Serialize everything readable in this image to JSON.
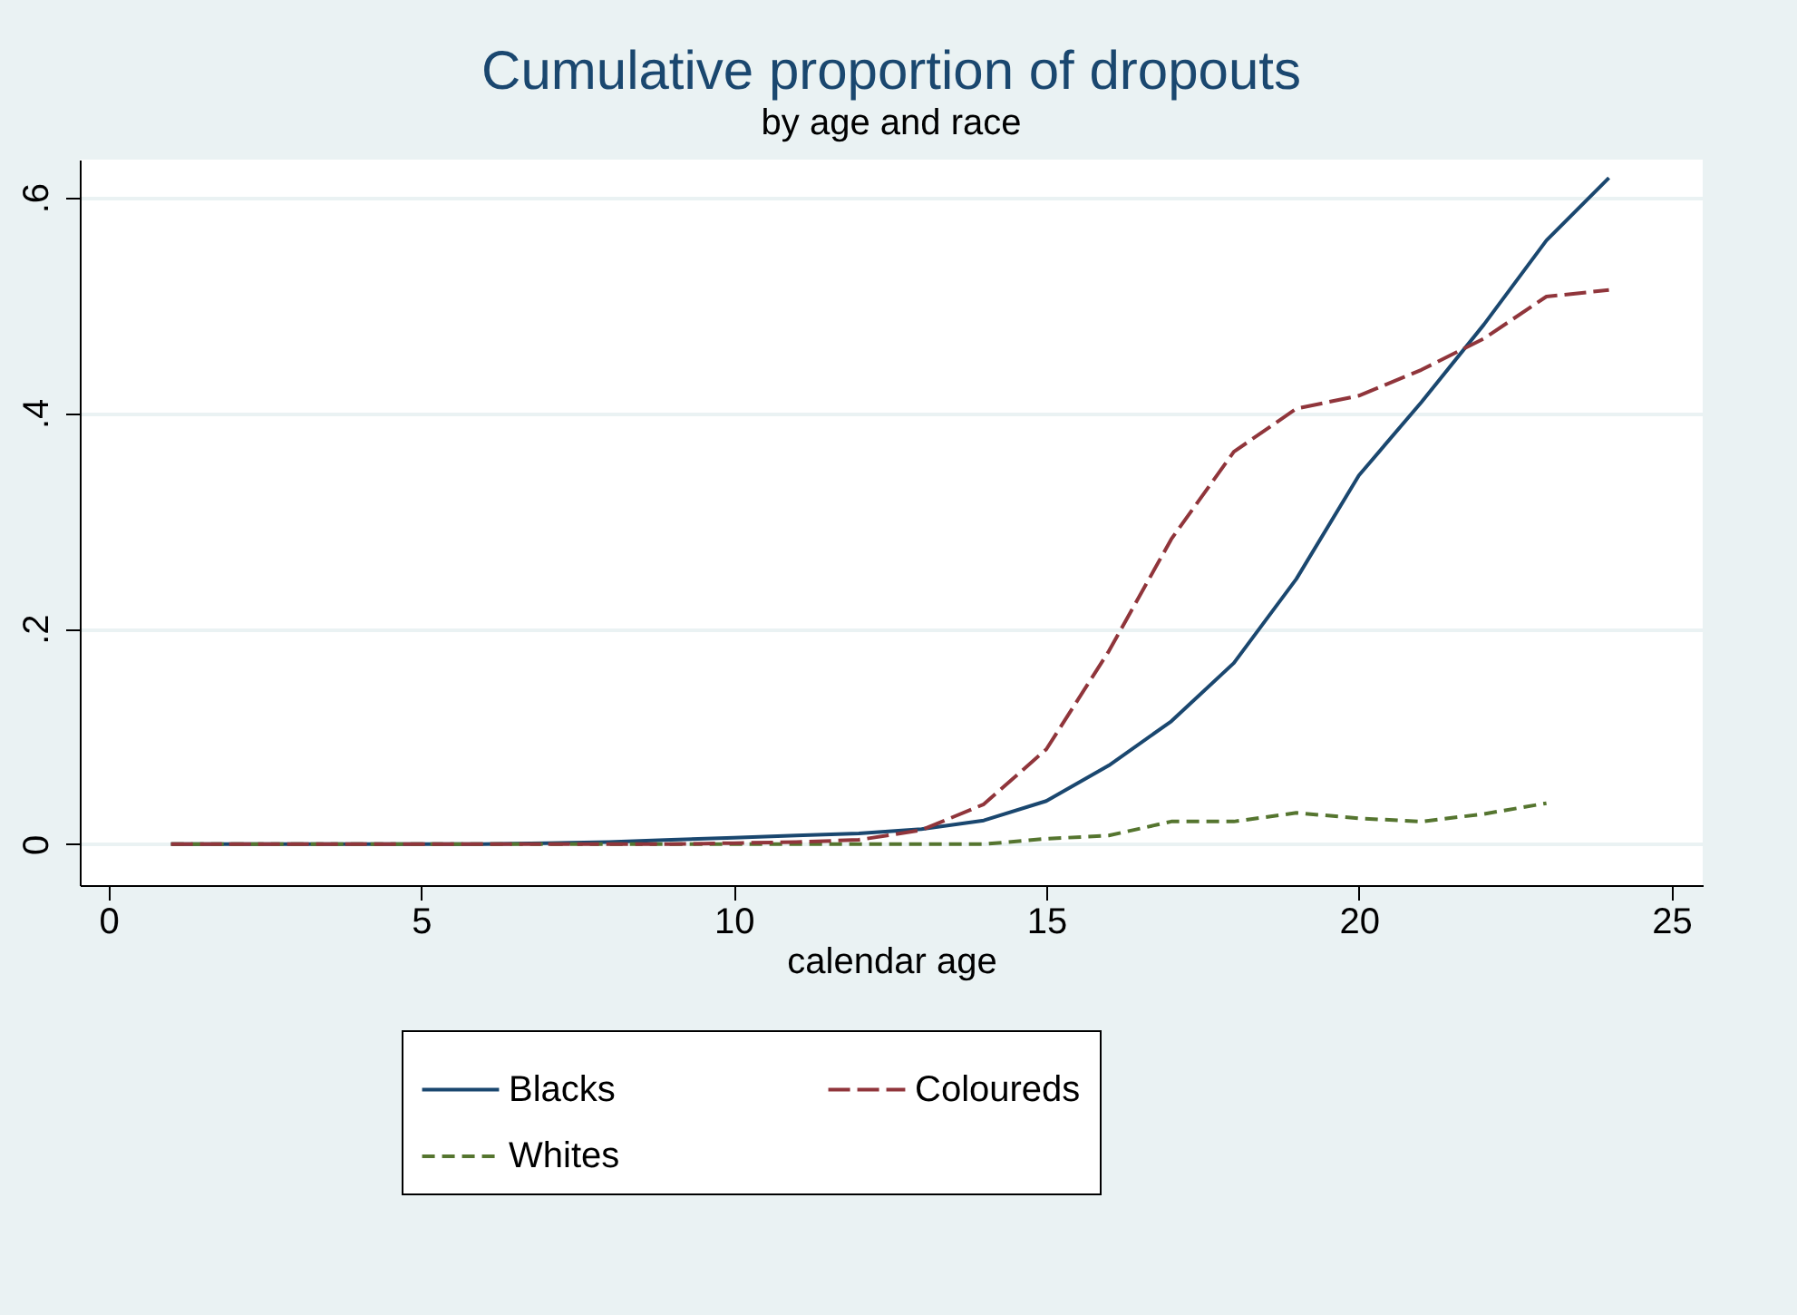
{
  "chart_data": {
    "type": "line",
    "title": "Cumulative proportion of dropouts",
    "subtitle": "by age and race",
    "xlabel": "calendar age",
    "x": [
      1,
      2,
      3,
      4,
      5,
      6,
      7,
      8,
      9,
      10,
      11,
      12,
      13,
      14,
      15,
      16,
      17,
      18,
      19,
      20,
      21,
      22,
      23,
      24
    ],
    "series": [
      {
        "name": "Blacks",
        "color": "#1a476f",
        "line_style": "solid",
        "values": [
          0,
          0,
          0,
          0,
          0,
          0,
          0.001,
          0.002,
          0.004,
          0.006,
          0.008,
          0.01,
          0.014,
          0.022,
          0.04,
          0.073,
          0.114,
          0.168,
          0.246,
          0.342,
          0.41,
          0.482,
          0.56,
          0.618
        ]
      },
      {
        "name": "Coloureds",
        "color": "#90353b",
        "line_style": "longdash",
        "values": [
          0,
          0,
          0,
          0,
          0,
          0,
          0,
          0,
          0,
          0.001,
          0.002,
          0.004,
          0.013,
          0.037,
          0.088,
          0.179,
          0.283,
          0.364,
          0.404,
          0.416,
          0.44,
          0.469,
          0.508,
          0.514
        ]
      },
      {
        "name": "Whites",
        "color": "#55752f",
        "line_style": "dashed",
        "values": [
          0,
          0,
          0,
          0,
          0,
          0,
          0,
          0,
          0,
          0,
          0,
          0,
          0,
          0,
          0.005,
          0.008,
          0.021,
          0.021,
          0.029,
          0.024,
          0.021,
          0.028,
          0.038,
          null
        ]
      }
    ],
    "xlim": [
      -0.46,
      25.5
    ],
    "xticks": [
      0,
      5,
      10,
      15,
      20,
      25
    ],
    "ylim": [
      -0.038,
      0.635
    ],
    "yticks": [
      0,
      {
        "value": 0.2,
        "label": ".2"
      },
      {
        "value": 0.4,
        "label": ".4"
      },
      {
        "value": 0.6,
        "label": ".6"
      }
    ],
    "grid": "y",
    "legend": "bottom"
  }
}
